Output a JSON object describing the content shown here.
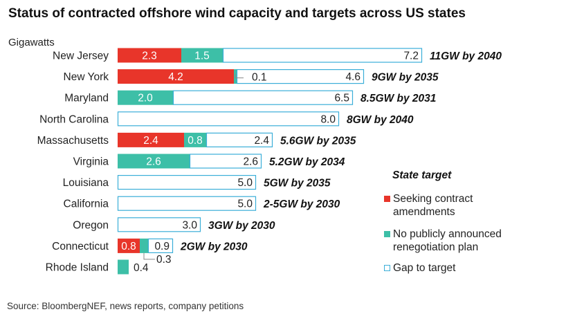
{
  "title": "Status of contracted offshore wind capacity and targets across US states",
  "source": "Source: BloombergNEF, news reports, company petitions",
  "colors": {
    "seeking": "#e8352a",
    "no_plan": "#3dbfa7",
    "gap_border": "#3aaed8",
    "gap_fill": "#ffffff"
  },
  "chart_data": {
    "type": "bar",
    "orientation": "horizontal",
    "stacked": true,
    "ylabel": "Gigawatts",
    "legend": {
      "title": "State target",
      "placement": "right",
      "items": [
        {
          "key": "seeking",
          "label_lines": [
            "Seeking contract",
            "amendments"
          ]
        },
        {
          "key": "no_plan",
          "label_lines": [
            "No publicly announced",
            "renegotiation plan"
          ]
        },
        {
          "key": "gap",
          "label_lines": [
            "Gap to target"
          ]
        }
      ]
    },
    "categories": [
      "New Jersey",
      "New York",
      "Maryland",
      "North Carolina",
      "Massachusetts",
      "Virginia",
      "Louisiana",
      "California",
      "Oregon",
      "Connecticut",
      "Rhode Island"
    ],
    "series": [
      {
        "key": "seeking",
        "name": "Seeking contract amendments",
        "values": [
          2.3,
          4.2,
          0,
          0,
          2.4,
          0,
          0,
          0,
          0,
          0.8,
          0
        ]
      },
      {
        "key": "no_plan",
        "name": "No publicly announced renegotiation plan",
        "values": [
          1.5,
          0.1,
          2.0,
          0,
          0.8,
          2.6,
          0,
          0,
          0,
          0.3,
          0.4
        ]
      },
      {
        "key": "gap",
        "name": "Gap to target",
        "values": [
          7.2,
          4.6,
          6.5,
          8.0,
          2.4,
          2.6,
          5.0,
          5.0,
          3.0,
          0.9,
          0
        ]
      }
    ],
    "value_labels": [
      [
        "2.3",
        "1.5",
        "7.2"
      ],
      [
        "4.2",
        "0.1",
        "4.6"
      ],
      [
        "",
        "2.0",
        "6.5"
      ],
      [
        "",
        "",
        "8.0"
      ],
      [
        "2.4",
        "0.8",
        "2.4"
      ],
      [
        "",
        "2.6",
        "2.6"
      ],
      [
        "",
        "",
        "5.0"
      ],
      [
        "",
        "",
        "5.0"
      ],
      [
        "",
        "",
        "3.0"
      ],
      [
        "0.8",
        "0.3",
        "0.9"
      ],
      [
        "",
        "0.4",
        ""
      ]
    ],
    "targets": [
      "11GW by 2040",
      "9GW by 2035",
      "8.5GW by 2031",
      "8GW by 2040",
      "5.6GW by 2035",
      "5.2GW by 2034",
      "5GW by 2035",
      "2-5GW by 2030",
      "3GW by 2030",
      "2GW by 2030",
      ""
    ]
  }
}
